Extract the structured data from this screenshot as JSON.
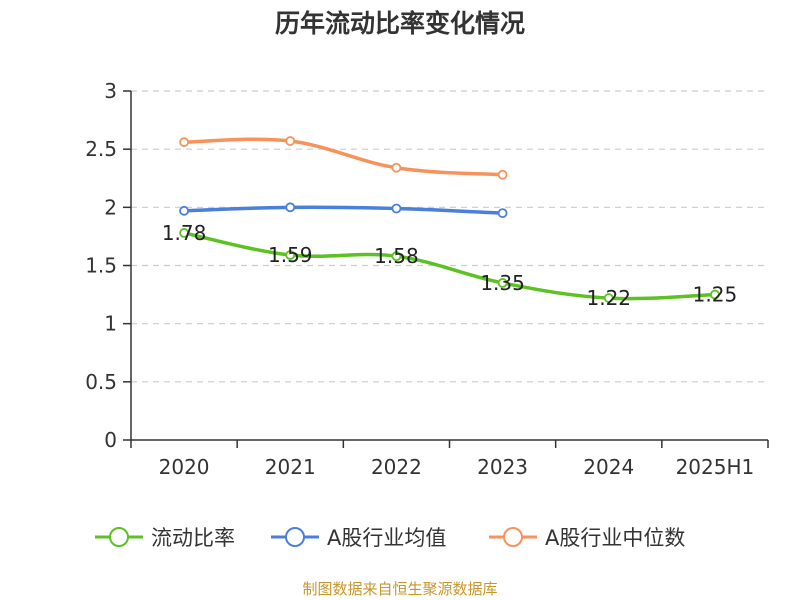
{
  "chart_data": {
    "type": "line",
    "title": "历年流动比率变化情况",
    "categories": [
      "2020",
      "2021",
      "2022",
      "2023",
      "2024",
      "2025H1"
    ],
    "ylim": [
      0,
      3
    ],
    "yticks": [
      "0",
      "0.5",
      "1",
      "1.5",
      "2",
      "2.5",
      "3"
    ],
    "grid": true,
    "legend_position": "bottom",
    "series": [
      {
        "name": "流动比率",
        "color": "#5cc123",
        "values": [
          1.78,
          1.59,
          1.58,
          1.35,
          1.22,
          1.25
        ],
        "labels": [
          "1.78",
          "1.59",
          "1.58",
          "1.35",
          "1.22",
          "1.25"
        ],
        "show_labels": true
      },
      {
        "name": "A股行业均值",
        "color": "#4a7fdc",
        "values": [
          1.97,
          2.0,
          1.99,
          1.95,
          null,
          null
        ],
        "show_labels": false
      },
      {
        "name": "A股行业中位数",
        "color": "#f7925a",
        "values": [
          2.56,
          2.57,
          2.34,
          2.28,
          null,
          null
        ],
        "show_labels": false
      }
    ]
  },
  "footer": {
    "source": "制图数据来自恒生聚源数据库"
  }
}
